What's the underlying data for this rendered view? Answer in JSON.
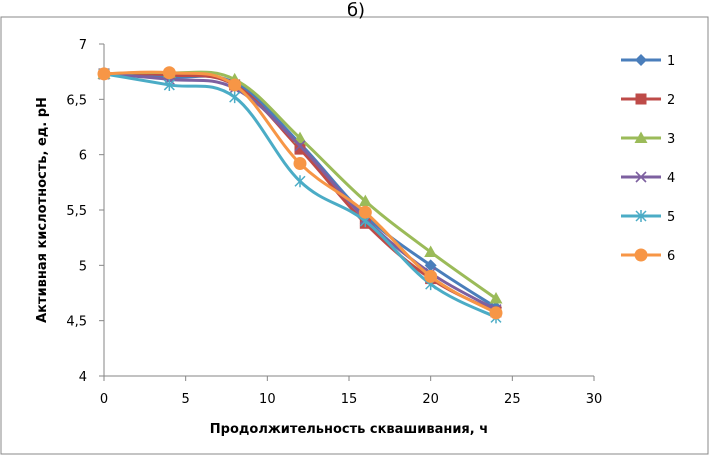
{
  "panel_label": "б)",
  "chart_data": {
    "type": "line",
    "title": "",
    "xlabel": "Продолжительность сквашивания, ч",
    "ylabel": "Активная кислотность, ед. pH",
    "xlim": [
      0,
      30
    ],
    "ylim": [
      4,
      7
    ],
    "x_ticks": [
      0,
      5,
      10,
      15,
      20,
      25,
      30
    ],
    "y_ticks": [
      4,
      4.5,
      5,
      5.5,
      6,
      6.5,
      7
    ],
    "x_tick_labels": [
      "0",
      "5",
      "10",
      "15",
      "20",
      "25",
      "30"
    ],
    "y_tick_labels": [
      "4",
      "4,5",
      "5",
      "5,5",
      "6",
      "6,5",
      "7"
    ],
    "grid": false,
    "legend_position": "right",
    "x": [
      0,
      4,
      8,
      12,
      16,
      20,
      24
    ],
    "series": [
      {
        "name": "1",
        "color": "#4A7EBB",
        "marker": "diamond",
        "values": [
          6.73,
          6.7,
          6.65,
          6.1,
          5.45,
          5.0,
          4.62
        ]
      },
      {
        "name": "2",
        "color": "#BE4B48",
        "marker": "square",
        "values": [
          6.73,
          6.72,
          6.63,
          6.05,
          5.38,
          4.88,
          4.58
        ]
      },
      {
        "name": "3",
        "color": "#9BBB59",
        "marker": "triangle",
        "values": [
          6.73,
          6.74,
          6.68,
          6.15,
          5.58,
          5.12,
          4.7
        ]
      },
      {
        "name": "4",
        "color": "#7D60A0",
        "marker": "x",
        "values": [
          6.73,
          6.68,
          6.6,
          6.08,
          5.42,
          4.93,
          4.6
        ]
      },
      {
        "name": "5",
        "color": "#4BACC6",
        "marker": "star",
        "values": [
          6.73,
          6.63,
          6.52,
          5.76,
          5.4,
          4.83,
          4.53
        ]
      },
      {
        "name": "6",
        "color": "#F79646",
        "marker": "circle",
        "values": [
          6.73,
          6.74,
          6.63,
          5.92,
          5.48,
          4.9,
          4.57
        ]
      }
    ]
  }
}
